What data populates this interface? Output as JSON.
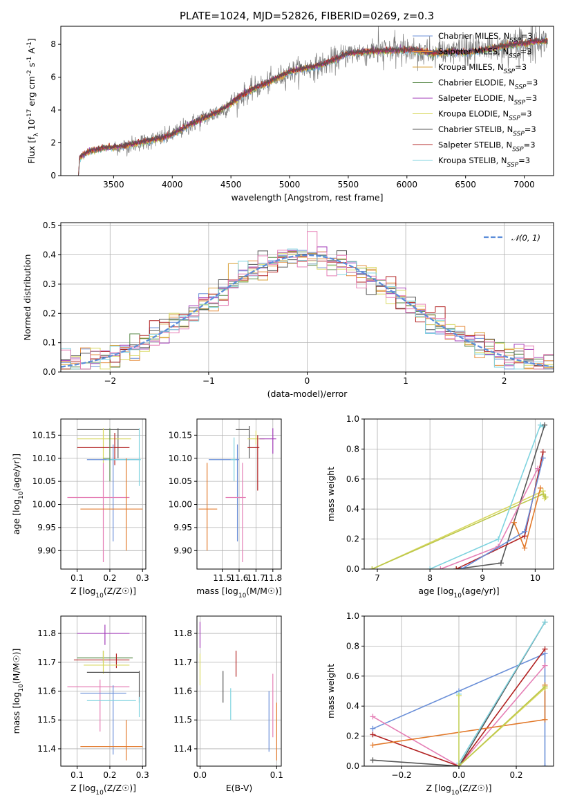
{
  "figure": {
    "title": "PLATE=1024, MJD=52826, FIBERID=0269, z=0.3"
  },
  "colors": {
    "Chabrier MILES": "#6a8fd8",
    "Salpeter MILES": "#e58b3a",
    "Kroupa MILES": "#d9a13a",
    "Chabrier ELODIE": "#5a8a4a",
    "Salpeter ELODIE": "#a23bb8",
    "Kroupa ELODIE": "#d8d860",
    "Chabrier STELIB": "#555555",
    "Salpeter STELIB": "#b22222",
    "Kroupa STELIB": "#7fd3df",
    "gaussian": "#5b8dd9",
    "extra_pink": "#e57fb5",
    "extra_orange": "#e2792a",
    "extra_olive": "#bcc74a"
  },
  "chart_data": [
    {
      "id": "spectrum",
      "type": "line",
      "title": "PLATE=1024, MJD=52826, FIBERID=0269, z=0.3",
      "xlabel": "wavelength [Angstrom, rest frame]",
      "ylabel": "Flux [f_λ 10^-17 erg cm^-2 s^-1 A^-1]",
      "xlim": [
        3050,
        7250
      ],
      "ylim": [
        0,
        9.1
      ],
      "xticks": [
        3500,
        4000,
        4500,
        5000,
        5500,
        6000,
        6500,
        7000
      ],
      "yticks": [
        0,
        2,
        4,
        6,
        8
      ],
      "grid": false,
      "legend_position": "upper-right",
      "legend": [
        {
          "name": "Chabrier MILES",
          "label": "Chabrier MILES, N",
          "sub": "SSP",
          "tail": "=3"
        },
        {
          "name": "Salpeter MILES",
          "label": "Salpeter MILES, N",
          "sub": "SSP",
          "tail": "=3"
        },
        {
          "name": "Kroupa MILES",
          "label": "Kroupa MILES, N",
          "sub": "SSP",
          "tail": "=3"
        },
        {
          "name": "Chabrier ELODIE",
          "label": "Chabrier ELODIE, N",
          "sub": "SSP",
          "tail": "=3"
        },
        {
          "name": "Salpeter ELODIE",
          "label": "Salpeter ELODIE, N",
          "sub": "SSP",
          "tail": "=3"
        },
        {
          "name": "Kroupa ELODIE",
          "label": "Kroupa ELODIE, N",
          "sub": "SSP",
          "tail": "=3"
        },
        {
          "name": "Chabrier STELIB",
          "label": "Chabrier STELIB, N",
          "sub": "SSP",
          "tail": "=3"
        },
        {
          "name": "Salpeter STELIB",
          "label": "Salpeter STELIB, N",
          "sub": "SSP",
          "tail": "=3"
        },
        {
          "name": "Kroupa STELIB",
          "label": "Kroupa STELIB, N",
          "sub": "SSP",
          "tail": "=3"
        }
      ],
      "continuum_anchors": {
        "x": [
          3200,
          3210,
          3300,
          3450,
          3550,
          3650,
          3750,
          3850,
          3950,
          4050,
          4150,
          4300,
          4400,
          4500,
          4600,
          4700,
          4800,
          4900,
          5000,
          5100,
          5200,
          5300,
          5400,
          5500,
          5600,
          5700,
          5800,
          5900,
          6000,
          6100,
          6200,
          6300,
          6400,
          6500,
          6600,
          6700,
          6800,
          6900,
          7000,
          7100,
          7200
        ],
        "y": [
          0.0,
          1.1,
          1.5,
          1.7,
          1.75,
          1.9,
          2.05,
          2.2,
          2.35,
          2.7,
          3.1,
          3.6,
          3.9,
          4.4,
          4.9,
          5.3,
          5.6,
          5.95,
          6.3,
          6.5,
          6.6,
          6.8,
          7.1,
          7.45,
          7.5,
          7.55,
          7.6,
          7.6,
          7.65,
          7.6,
          7.45,
          7.5,
          7.55,
          7.5,
          7.6,
          7.7,
          7.85,
          7.95,
          8.05,
          8.15,
          8.2
        ]
      },
      "data_x_range": [
        3200,
        7200
      ],
      "noisy_start": 3500
    },
    {
      "id": "residuals",
      "type": "histogram",
      "xlabel": "(data-model)/error",
      "ylabel": "Normed distribution",
      "xlim": [
        -2.5,
        2.5
      ],
      "ylim": [
        0,
        0.51
      ],
      "xticks": [
        -2,
        -1,
        0,
        1,
        2
      ],
      "yticks": [
        0.0,
        0.1,
        0.2,
        0.3,
        0.4,
        0.5
      ],
      "grid": true,
      "legend_position": "upper-right",
      "legend": [
        {
          "name": "gaussian",
          "label": "𝒩(0, 1)"
        }
      ],
      "bin_width": 0.1,
      "series_colors": [
        "Chabrier MILES",
        "Salpeter MILES",
        "Kroupa MILES",
        "Chabrier ELODIE",
        "Salpeter ELODIE",
        "Kroupa ELODIE",
        "Chabrier STELIB",
        "Salpeter STELIB",
        "Kroupa STELIB",
        "extra_pink"
      ],
      "notable_values": {
        "peak_pink_at_0.05": 0.48
      }
    },
    {
      "id": "age-vs-Z",
      "type": "errorbar",
      "xlabel": "Z [log10(Z/Z☉)]",
      "ylabel": "age [log10(age/yr)]",
      "xlim": [
        0.05,
        0.31
      ],
      "ylim": [
        9.86,
        10.185
      ],
      "xticks": [
        0.1,
        0.2,
        0.3
      ],
      "yticks": [
        9.9,
        9.95,
        10.0,
        10.05,
        10.1,
        10.15
      ],
      "grid": true,
      "points": [
        {
          "series": "Chabrier STELIB",
          "x": 0.225,
          "xerr": [
            0.1,
            0.29
          ],
          "y": 10.162,
          "yerr": [
            10.1,
            10.165
          ]
        },
        {
          "series": "Kroupa ELODIE",
          "x": 0.18,
          "xerr": [
            0.1,
            0.265
          ],
          "y": 10.142,
          "yerr": [
            10.09,
            10.165
          ]
        },
        {
          "series": "Salpeter STELIB",
          "x": 0.215,
          "xerr": [
            0.1,
            0.26
          ],
          "y": 10.123,
          "yerr": [
            10.085,
            10.155
          ]
        },
        {
          "series": "Chabrier MILES",
          "x": 0.21,
          "xerr": [
            0.13,
            0.29
          ],
          "y": 10.097,
          "yerr": [
            9.92,
            10.13
          ]
        },
        {
          "series": "Kroupa STELIB",
          "x": 0.29,
          "xerr": [
            0.19,
            0.295
          ],
          "y": 10.097,
          "yerr": [
            10.04,
            10.165
          ]
        },
        {
          "series": "extra_pink",
          "x": 0.18,
          "xerr": [
            0.07,
            0.26
          ],
          "y": 10.015,
          "yerr": [
            9.875,
            10.09
          ]
        },
        {
          "series": "extra_orange",
          "x": 0.25,
          "xerr": [
            0.11,
            0.3
          ],
          "y": 9.99,
          "yerr": [
            9.9,
            10.1
          ]
        },
        {
          "series": "Chabrier ELODIE",
          "x": 0.2,
          "xerr": [
            0.18,
            0.2
          ],
          "y": 10.1,
          "yerr": [
            10.05,
            10.165
          ]
        }
      ]
    },
    {
      "id": "age-vs-mass",
      "type": "errorbar",
      "xlabel": "mass [log10(M/M☉)]",
      "ylabel": "",
      "xlim": [
        11.35,
        11.85
      ],
      "ylim": [
        9.86,
        10.185
      ],
      "xticks": [
        11.5,
        11.6,
        11.7,
        11.8
      ],
      "yticks": [
        9.9,
        9.95,
        10.0,
        10.05,
        10.1,
        10.15
      ],
      "grid": true,
      "points": [
        {
          "series": "Chabrier STELIB",
          "x": 11.66,
          "xerr": [
            11.58,
            11.66
          ],
          "y": 10.162,
          "yerr": [
            10.1,
            10.17
          ]
        },
        {
          "series": "Kroupa ELODIE",
          "x": 11.7,
          "xerr": [
            11.65,
            11.75
          ],
          "y": 10.142,
          "yerr": [
            10.13,
            10.16
          ]
        },
        {
          "series": "Salpeter ELODIE",
          "x": 11.8,
          "xerr": [
            11.72,
            11.82
          ],
          "y": 10.142,
          "yerr": [
            10.11,
            10.165
          ]
        },
        {
          "series": "Salpeter STELIB",
          "x": 11.71,
          "xerr": [
            11.65,
            11.72
          ],
          "y": 10.123,
          "yerr": [
            10.03,
            10.15
          ]
        },
        {
          "series": "Chabrier MILES",
          "x": 11.59,
          "xerr": [
            11.42,
            11.6
          ],
          "y": 10.097,
          "yerr": [
            9.92,
            10.13
          ]
        },
        {
          "series": "Kroupa STELIB",
          "x": 11.57,
          "xerr": [
            11.55,
            11.58
          ],
          "y": 10.097,
          "yerr": [
            10.05,
            10.145
          ]
        },
        {
          "series": "extra_pink",
          "x": 11.62,
          "xerr": [
            11.52,
            11.64
          ],
          "y": 10.015,
          "yerr": [
            9.875,
            10.09
          ]
        },
        {
          "series": "extra_orange",
          "x": 11.41,
          "xerr": [
            11.36,
            11.47
          ],
          "y": 9.99,
          "yerr": [
            9.9,
            10.09
          ]
        }
      ]
    },
    {
      "id": "weight-vs-age",
      "type": "line",
      "xlabel": "age [log10(age/yr)]",
      "ylabel": "mass weight",
      "xlim": [
        6.75,
        10.35
      ],
      "ylim": [
        0,
        1.0
      ],
      "xticks": [
        7,
        8,
        9,
        10
      ],
      "yticks": [
        0.0,
        0.2,
        0.4,
        0.6,
        0.8,
        1.0
      ],
      "grid": true,
      "series": [
        {
          "name": "Kroupa ELODIE",
          "x": [
            6.9,
            10.15,
            10.18
          ],
          "y": [
            0.0,
            0.52,
            0.47
          ]
        },
        {
          "name": "extra_olive",
          "x": [
            6.9,
            10.15,
            10.2
          ],
          "y": [
            0.0,
            0.5,
            0.48
          ]
        },
        {
          "name": "Kroupa STELIB",
          "x": [
            8.0,
            9.3,
            10.1,
            10.15
          ],
          "y": [
            0.0,
            0.2,
            0.96,
            0.95
          ]
        },
        {
          "name": "Chabrier STELIB",
          "x": [
            8.5,
            9.35,
            10.18
          ],
          "y": [
            0.0,
            0.04,
            0.96
          ]
        },
        {
          "name": "Salpeter STELIB",
          "x": [
            8.5,
            9.8,
            10.15
          ],
          "y": [
            0.0,
            0.22,
            0.78
          ]
        },
        {
          "name": "extra_pink",
          "x": [
            8.2,
            9.3,
            10.05
          ],
          "y": [
            0.0,
            0.15,
            0.67
          ]
        },
        {
          "name": "extra_orange",
          "x": [
            9.6,
            9.8,
            10.1
          ],
          "y": [
            0.31,
            0.14,
            0.54
          ]
        },
        {
          "name": "Chabrier MILES",
          "x": [
            8.6,
            9.8,
            10.15
          ],
          "y": [
            0.0,
            0.25,
            0.74
          ]
        }
      ]
    },
    {
      "id": "mass-vs-Z",
      "type": "errorbar",
      "xlabel": "Z [log10(Z/Z☉)]",
      "ylabel": "mass [log10(M/M☉)]",
      "xlim": [
        0.05,
        0.31
      ],
      "ylim": [
        11.34,
        11.86
      ],
      "xticks": [
        0.1,
        0.2,
        0.3
      ],
      "yticks": [
        11.4,
        11.5,
        11.6,
        11.7,
        11.8
      ],
      "grid": true,
      "points": [
        {
          "series": "Salpeter ELODIE",
          "x": 0.185,
          "xerr": [
            0.1,
            0.26
          ],
          "y": 11.8,
          "yerr": [
            11.76,
            11.83
          ]
        },
        {
          "series": "Chabrier ELODIE",
          "x": 0.18,
          "xerr": [
            0.1,
            0.27
          ],
          "y": 11.715,
          "yerr": [
            11.7,
            11.74
          ]
        },
        {
          "series": "Salpeter STELIB",
          "x": 0.22,
          "xerr": [
            0.09,
            0.26
          ],
          "y": 11.708,
          "yerr": [
            11.68,
            11.73
          ]
        },
        {
          "series": "Kroupa ELODIE",
          "x": 0.18,
          "xerr": [
            0.12,
            0.26
          ],
          "y": 11.69,
          "yerr": [
            11.66,
            11.74
          ]
        },
        {
          "series": "Chabrier STELIB",
          "x": 0.29,
          "xerr": [
            0.13,
            0.29
          ],
          "y": 11.665,
          "yerr": [
            11.56,
            11.67
          ]
        },
        {
          "series": "extra_pink",
          "x": 0.17,
          "xerr": [
            0.07,
            0.26
          ],
          "y": 11.615,
          "yerr": [
            11.46,
            11.64
          ]
        },
        {
          "series": "Chabrier MILES",
          "x": 0.21,
          "xerr": [
            0.11,
            0.25
          ],
          "y": 11.593,
          "yerr": [
            11.38,
            11.62
          ]
        },
        {
          "series": "Kroupa STELIB",
          "x": 0.29,
          "xerr": [
            0.13,
            0.28
          ],
          "y": 11.567,
          "yerr": [
            11.51,
            11.58
          ]
        },
        {
          "series": "extra_orange",
          "x": 0.25,
          "xerr": [
            0.11,
            0.3
          ],
          "y": 11.408,
          "yerr": [
            11.36,
            11.5
          ]
        }
      ]
    },
    {
      "id": "mass-vs-EBV",
      "type": "errorbar",
      "xlabel": "E(B-V)",
      "ylabel": "",
      "xlim": [
        -0.004,
        0.106
      ],
      "ylim": [
        11.34,
        11.86
      ],
      "xticks": [
        0.0,
        0.1
      ],
      "yticks": [
        11.4,
        11.5,
        11.6,
        11.7,
        11.8
      ],
      "grid": true,
      "points": [
        {
          "series": "Salpeter ELODIE",
          "x": 0.0,
          "y": 11.8,
          "yerr": [
            11.75,
            11.84
          ]
        },
        {
          "series": "Kroupa ELODIE",
          "x": 0.0,
          "y": 11.7,
          "yerr": [
            11.62,
            11.73
          ]
        },
        {
          "series": "Chabrier STELIB",
          "x": 0.03,
          "y": 11.6,
          "yerr": [
            11.56,
            11.67
          ]
        },
        {
          "series": "Kroupa STELIB",
          "x": 0.04,
          "y": 11.57,
          "yerr": [
            11.5,
            11.61
          ]
        },
        {
          "series": "Salpeter STELIB",
          "x": 0.047,
          "y": 11.7,
          "yerr": [
            11.65,
            11.74
          ]
        },
        {
          "series": "Chabrier MILES",
          "x": 0.09,
          "y": 11.5,
          "yerr": [
            11.39,
            11.6
          ]
        },
        {
          "series": "extra_pink",
          "x": 0.095,
          "y": 11.6,
          "yerr": [
            11.44,
            11.66
          ]
        },
        {
          "series": "extra_orange",
          "x": 0.1,
          "y": 11.45,
          "yerr": [
            11.36,
            11.56
          ]
        }
      ]
    },
    {
      "id": "weight-vs-Z",
      "type": "line",
      "xlabel": "Z [log10(Z/Z☉)]",
      "ylabel": "mass weight",
      "xlim": [
        -0.33,
        0.33
      ],
      "ylim": [
        0,
        1.0
      ],
      "xticks": [
        -0.2,
        0.0,
        0.2
      ],
      "yticks": [
        0.0,
        0.2,
        0.4,
        0.6,
        0.8,
        1.0
      ],
      "grid": true,
      "series": [
        {
          "name": "Chabrier MILES",
          "x": [
            -0.3,
            0.0,
            0.3,
            0.3
          ],
          "y": [
            0.25,
            0.5,
            0.75,
            0.0
          ]
        },
        {
          "name": "extra_pink",
          "x": [
            -0.3,
            0.0,
            0.3
          ],
          "y": [
            0.33,
            0.0,
            0.67
          ]
        },
        {
          "name": "Salpeter STELIB",
          "x": [
            -0.3,
            0.0,
            0.3
          ],
          "y": [
            0.21,
            0.0,
            0.78
          ]
        },
        {
          "name": "extra_orange",
          "x": [
            -0.3,
            0.3,
            0.3
          ],
          "y": [
            0.14,
            0.31,
            0.54
          ]
        },
        {
          "name": "Chabrier STELIB",
          "x": [
            -0.3,
            0.0,
            0.3
          ],
          "y": [
            0.04,
            0.0,
            0.96
          ]
        },
        {
          "name": "Kroupa STELIB",
          "x": [
            0.0,
            0.0,
            0.3
          ],
          "y": [
            0.48,
            0.02,
            0.96
          ]
        },
        {
          "name": "Kroupa ELODIE",
          "x": [
            0.0,
            0.0,
            0.3
          ],
          "y": [
            0.47,
            0.0,
            0.52
          ]
        },
        {
          "name": "extra_olive",
          "x": [
            0.0,
            0.3
          ],
          "y": [
            0.0,
            0.53
          ]
        }
      ]
    }
  ]
}
